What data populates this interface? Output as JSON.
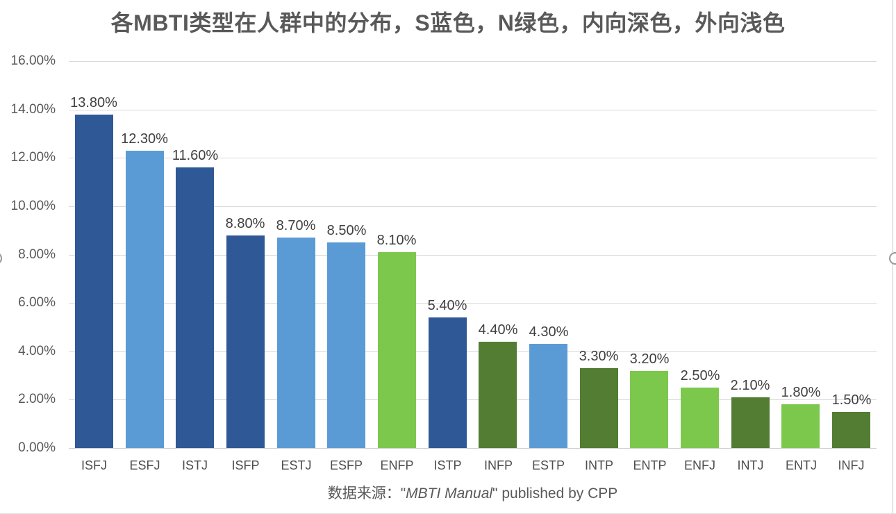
{
  "title": "各MBTI类型在人群中的分布，S蓝色，N绿色，内向深色，外向浅色",
  "caption": {
    "prefix": "数据来源：\"",
    "italic": "MBTI Manual",
    "suffix": "\" published by CPP"
  },
  "chart_data": {
    "type": "bar",
    "title": "各MBTI类型在人群中的分布，S蓝色，N绿色，内向深色，外向浅色",
    "xlabel": "",
    "ylabel": "",
    "categories": [
      "ISFJ",
      "ESFJ",
      "ISTJ",
      "ISFP",
      "ESTJ",
      "ESFP",
      "ENFP",
      "ISTP",
      "INFP",
      "ESTP",
      "INTP",
      "ENTP",
      "ENFJ",
      "INTJ",
      "ENTJ",
      "INFJ"
    ],
    "values": [
      13.8,
      12.3,
      11.6,
      8.8,
      8.7,
      8.5,
      8.1,
      5.4,
      4.4,
      4.3,
      3.3,
      3.2,
      2.5,
      2.1,
      1.8,
      1.5
    ],
    "data_labels": [
      "13.80%",
      "12.30%",
      "11.60%",
      "8.80%",
      "8.70%",
      "8.50%",
      "8.10%",
      "5.40%",
      "4.40%",
      "4.30%",
      "3.30%",
      "3.20%",
      "2.50%",
      "2.10%",
      "1.80%",
      "1.50%"
    ],
    "bar_colors": [
      "#2f5897",
      "#5b9bd5",
      "#2f5897",
      "#2f5897",
      "#5b9bd5",
      "#5b9bd5",
      "#7cc84d",
      "#2f5897",
      "#527d32",
      "#5b9bd5",
      "#527d32",
      "#7cc84d",
      "#7cc84d",
      "#527d32",
      "#7cc84d",
      "#527d32"
    ],
    "color_legend": {
      "S_introvert_dark_blue": "#2f5897",
      "S_extravert_light_blue": "#5b9bd5",
      "N_introvert_dark_green": "#527d32",
      "N_extravert_light_green": "#7cc84d"
    },
    "ylim": [
      0,
      16
    ],
    "yticks": [
      "16.00%",
      "14.00%",
      "12.00%",
      "10.00%",
      "8.00%",
      "6.00%",
      "4.00%",
      "2.00%",
      "0.00%"
    ],
    "grid": true,
    "legend_position": "none",
    "source": "数据来源：\"MBTI Manual\" published by CPP"
  }
}
